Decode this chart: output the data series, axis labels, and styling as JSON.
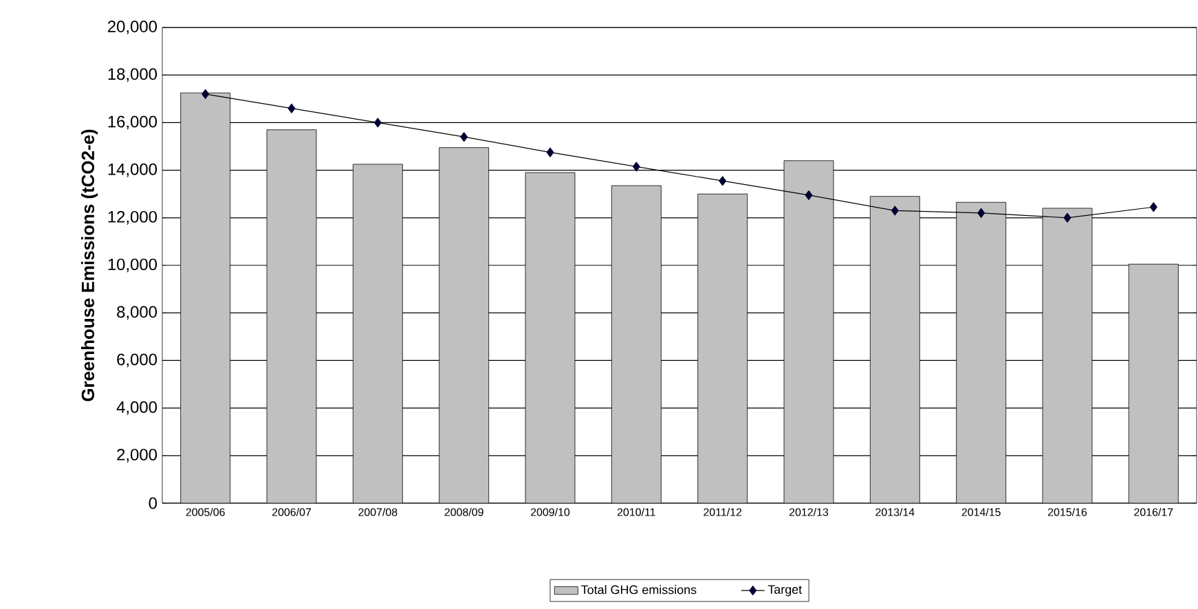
{
  "chart_data": {
    "type": "bar",
    "ylabel": "Greenhouse Emissions (tCO2-e)",
    "categories": [
      "2005/06",
      "2006/07",
      "2007/08",
      "2008/09",
      "2009/10",
      "2010/11",
      "2011/12",
      "2012/13",
      "2013/14",
      "2014/15",
      "2015/16",
      "2016/17"
    ],
    "series": [
      {
        "name": "Total GHG emissions",
        "color": "#c0c0c0",
        "values": [
          17250,
          15700,
          14250,
          14950,
          13900,
          13350,
          13000,
          14400,
          12900,
          12650,
          12400,
          10050
        ]
      },
      {
        "name": "Target",
        "type": "line",
        "color": "#000033",
        "marker": "diamond",
        "values": [
          17200,
          16600,
          16000,
          15400,
          14750,
          14150,
          13550,
          12950,
          12300,
          12200,
          12000,
          12450
        ]
      }
    ],
    "ylim": [
      0,
      20000
    ],
    "yticks": [
      {
        "value": 0,
        "label": "0"
      },
      {
        "value": 2000,
        "label": "2,000"
      },
      {
        "value": 4000,
        "label": "4,000"
      },
      {
        "value": 6000,
        "label": "6,000"
      },
      {
        "value": 8000,
        "label": "8,000"
      },
      {
        "value": 10000,
        "label": "10,000"
      },
      {
        "value": 12000,
        "label": "12,000"
      },
      {
        "value": 14000,
        "label": "14,000"
      },
      {
        "value": 16000,
        "label": "16,000"
      },
      {
        "value": 18000,
        "label": "18,000"
      },
      {
        "value": 20000,
        "label": "20,000"
      }
    ],
    "grid": "y",
    "legend": "bottom"
  }
}
